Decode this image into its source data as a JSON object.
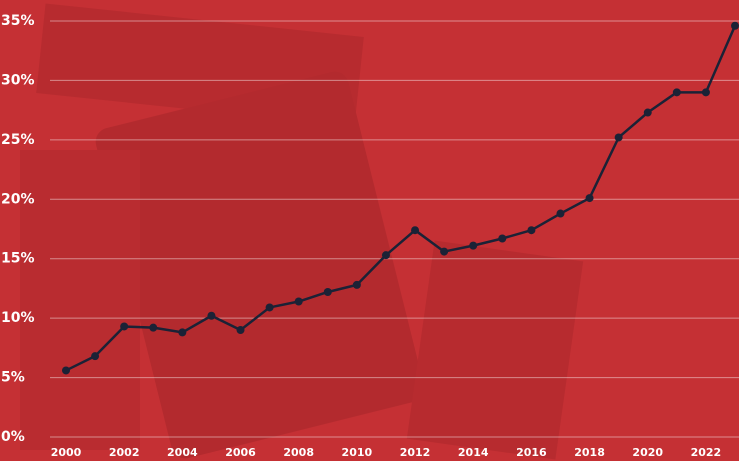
{
  "chart_data": {
    "type": "line",
    "x": [
      2000,
      2001,
      2002,
      2003,
      2004,
      2005,
      2006,
      2007,
      2008,
      2009,
      2010,
      2011,
      2012,
      2013,
      2014,
      2015,
      2016,
      2017,
      2018,
      2019,
      2020,
      2021,
      2022,
      2023
    ],
    "values": [
      5.6,
      6.8,
      9.3,
      9.2,
      8.8,
      10.2,
      9.0,
      10.9,
      11.4,
      12.2,
      12.8,
      15.3,
      17.4,
      15.6,
      16.1,
      16.7,
      17.4,
      18.8,
      20.1,
      25.2,
      27.3,
      29.0,
      29.0,
      34.6
    ],
    "color": "#1b2236",
    "xlim": [
      2000,
      2023
    ],
    "xticks": [
      2000,
      2002,
      2004,
      2006,
      2008,
      2010,
      2012,
      2014,
      2016,
      2018,
      2020,
      2022
    ],
    "ylim": [
      0,
      35
    ],
    "yticks": [
      {
        "value": 0,
        "label": "0%"
      },
      {
        "value": 5,
        "label": "5%"
      },
      {
        "value": 10,
        "label": "10%"
      },
      {
        "value": 15,
        "label": "15%"
      },
      {
        "value": 20,
        "label": "20%"
      },
      {
        "value": 25,
        "label": "25%"
      },
      {
        "value": 30,
        "label": "30%"
      },
      {
        "value": 35,
        "label": "35%"
      }
    ],
    "grid": true
  }
}
